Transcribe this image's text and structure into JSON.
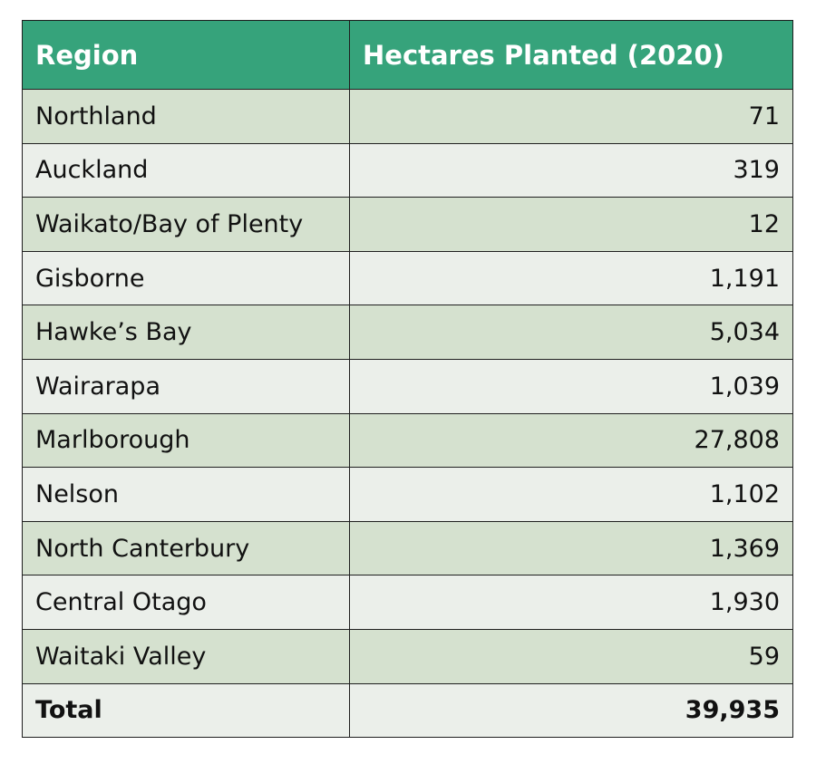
{
  "colors": {
    "header_bg": "#36a37b",
    "row_dark": "#d5e1cf",
    "row_light": "#ebefea",
    "border": "#1f1f1f"
  },
  "chart_data": {
    "type": "table",
    "columns": [
      "Region",
      "Hectares Planted (2020)"
    ],
    "rows": [
      {
        "region": "Northland",
        "hectares": "71"
      },
      {
        "region": "Auckland",
        "hectares": "319"
      },
      {
        "region": "Waikato/Bay of Plenty",
        "hectares": "12"
      },
      {
        "region": "Gisborne",
        "hectares": "1,191"
      },
      {
        "region": "Hawke’s Bay",
        "hectares": "5,034"
      },
      {
        "region": "Wairarapa",
        "hectares": "1,039"
      },
      {
        "region": "Marlborough",
        "hectares": "27,808"
      },
      {
        "region": "Nelson",
        "hectares": "1,102"
      },
      {
        "region": "North Canterbury",
        "hectares": "1,369"
      },
      {
        "region": "Central Otago",
        "hectares": "1,930"
      },
      {
        "region": "Waitaki Valley",
        "hectares": "59"
      }
    ],
    "total": {
      "label": "Total",
      "hectares": "39,935"
    }
  }
}
